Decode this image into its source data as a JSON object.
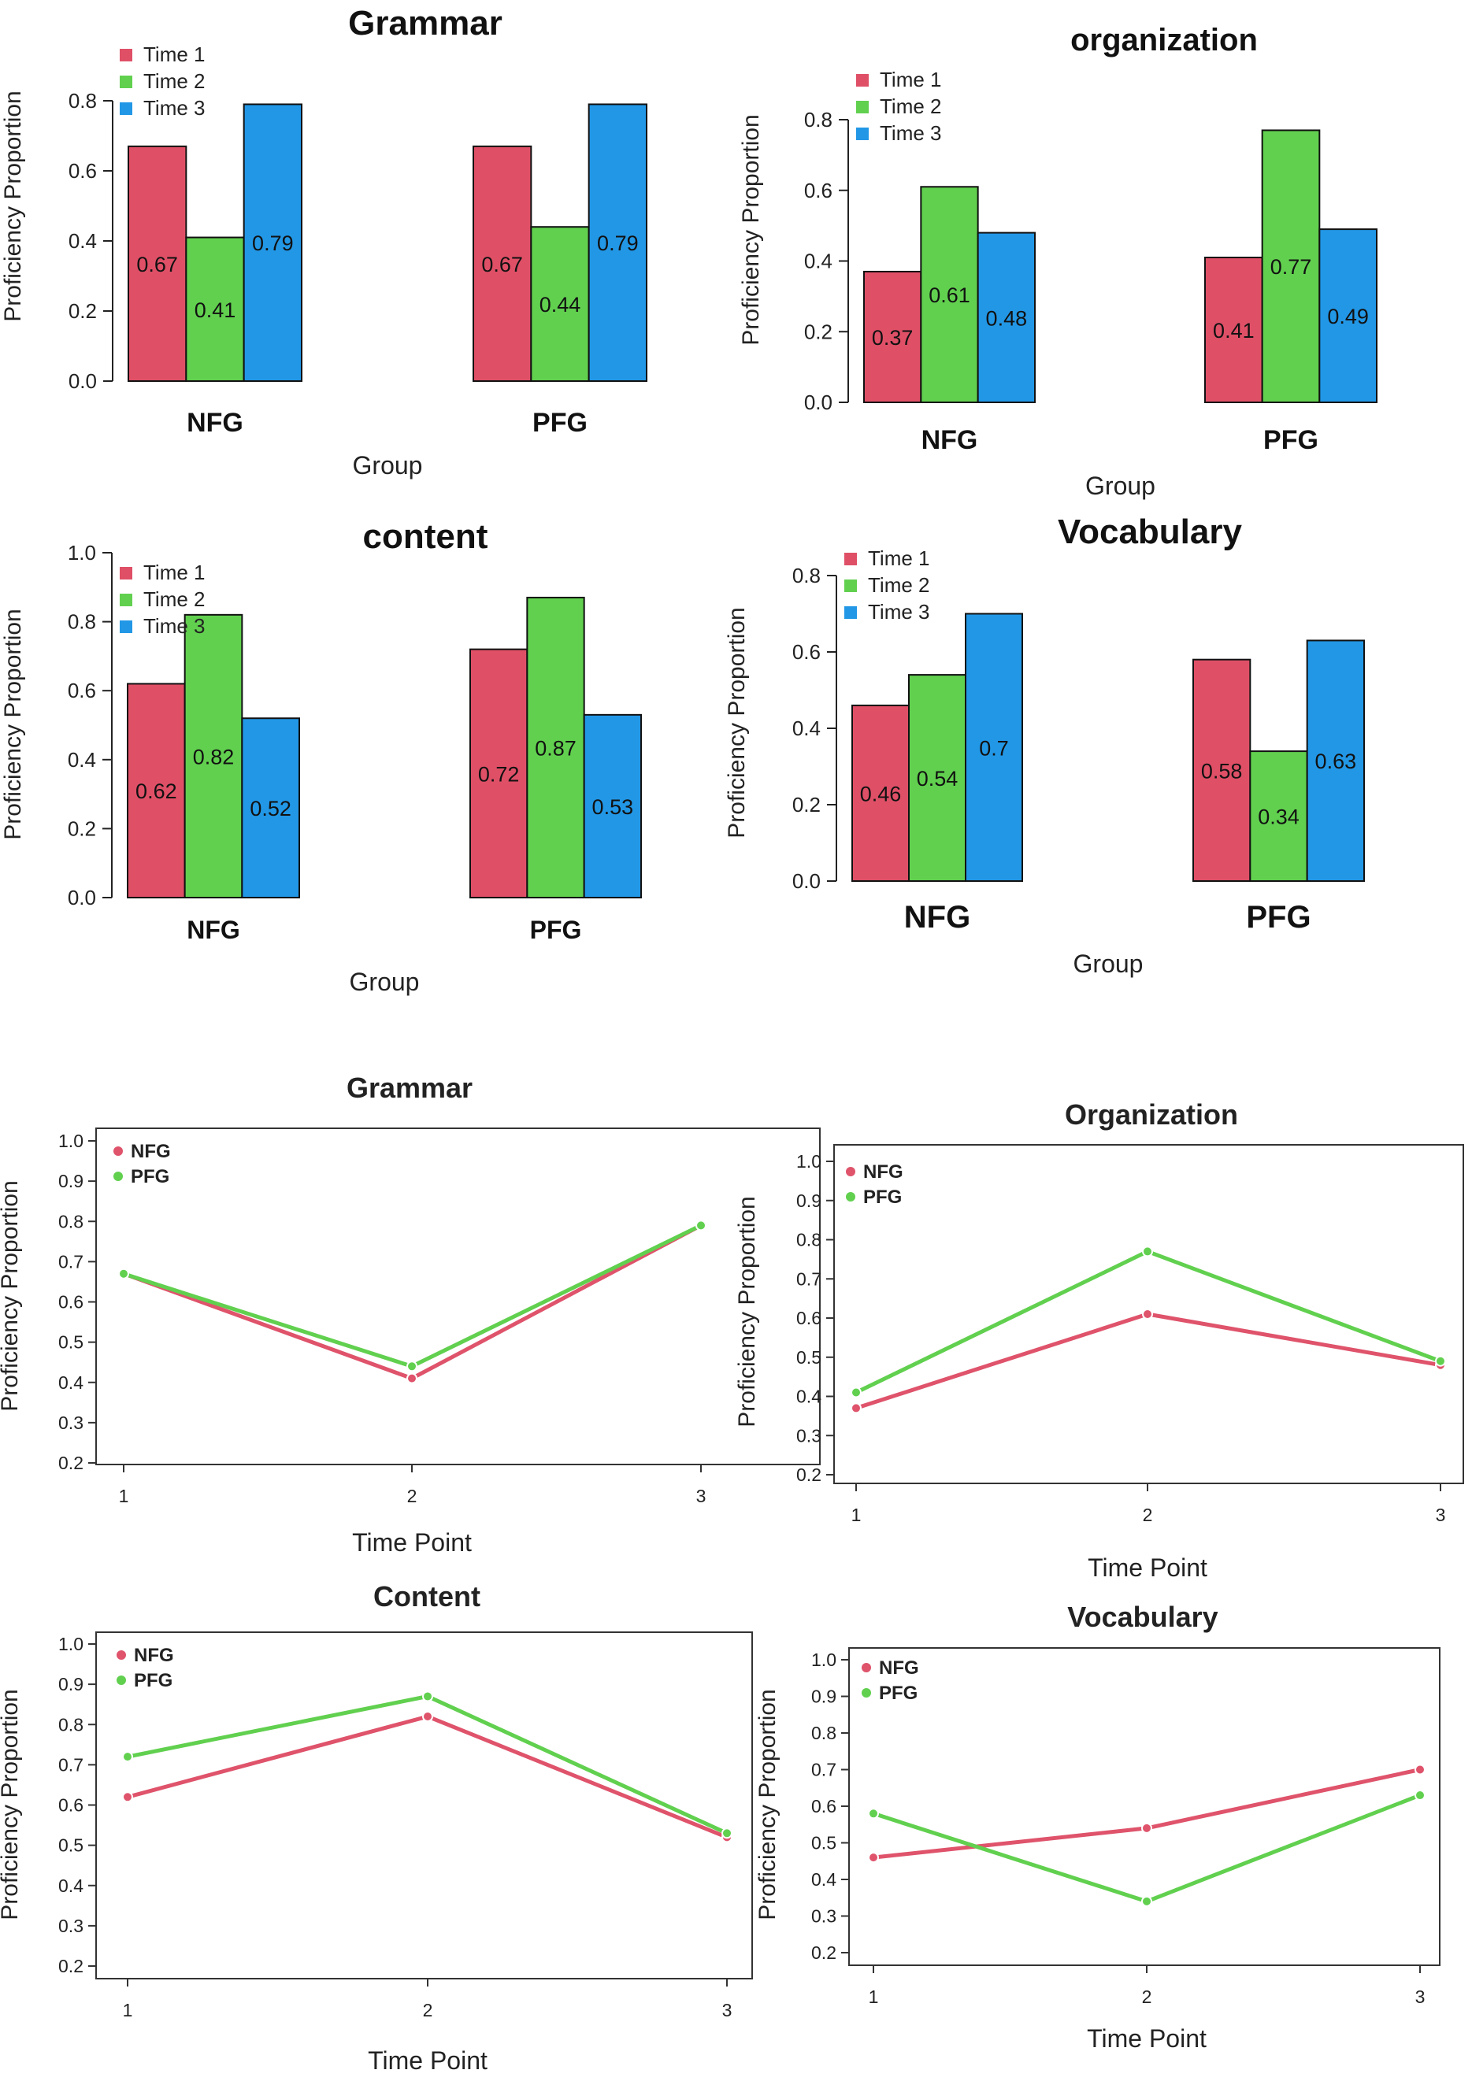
{
  "chart_data": [
    {
      "type": "bar",
      "title": "Grammar",
      "xlabel": "Group",
      "ylabel": "Proficiency Proportion",
      "categories": [
        "NFG",
        "PFG"
      ],
      "series": [
        {
          "name": "Time 1",
          "values": [
            0.67,
            0.67
          ]
        },
        {
          "name": "Time 2",
          "values": [
            0.41,
            0.44
          ]
        },
        {
          "name": "Time 3",
          "values": [
            0.79,
            0.79
          ]
        }
      ],
      "data_labels": [
        [
          "0.67",
          "0.67"
        ],
        [
          "0.41",
          "0.44"
        ],
        [
          "0.79",
          "0.79"
        ]
      ],
      "ylim": [
        0,
        0.8
      ],
      "yticks": [
        0.0,
        0.2,
        0.4,
        0.6,
        0.8
      ],
      "ytick_labels": [
        "0.0",
        "0.2",
        "0.4",
        "0.6",
        "0.8"
      ],
      "legend": "top-left"
    },
    {
      "type": "bar",
      "title": "organization",
      "xlabel": "Group",
      "ylabel": "Proficiency Proportion",
      "categories": [
        "NFG",
        "PFG"
      ],
      "series": [
        {
          "name": "Time 1",
          "values": [
            0.37,
            0.41
          ]
        },
        {
          "name": "Time 2",
          "values": [
            0.61,
            0.77
          ]
        },
        {
          "name": "Time 3",
          "values": [
            0.48,
            0.49
          ]
        }
      ],
      "data_labels": [
        [
          "0.37",
          "0.41"
        ],
        [
          "0.61",
          "0.77"
        ],
        [
          "0.48",
          "0.49"
        ]
      ],
      "ylim": [
        0,
        0.8
      ],
      "yticks": [
        0.0,
        0.2,
        0.4,
        0.6,
        0.8
      ],
      "ytick_labels": [
        "0.0",
        "0.2",
        "0.4",
        "0.6",
        "0.8"
      ],
      "legend": "top-left"
    },
    {
      "type": "bar",
      "title": "content",
      "xlabel": "Group",
      "ylabel": "Proficiency Proportion",
      "categories": [
        "NFG",
        "PFG"
      ],
      "series": [
        {
          "name": "Time 1",
          "values": [
            0.62,
            0.72
          ]
        },
        {
          "name": "Time 2",
          "values": [
            0.82,
            0.87
          ]
        },
        {
          "name": "Time 3",
          "values": [
            0.52,
            0.53
          ]
        }
      ],
      "data_labels": [
        [
          "0.62",
          "0.72"
        ],
        [
          "0.82",
          "0.87"
        ],
        [
          "0.52",
          "0.53"
        ]
      ],
      "ylim": [
        0,
        1.0
      ],
      "yticks": [
        0.0,
        0.2,
        0.4,
        0.6,
        0.8,
        1.0
      ],
      "ytick_labels": [
        "0.0",
        "0.2",
        "0.4",
        "0.6",
        "0.8",
        "1.0"
      ],
      "legend": "top-left"
    },
    {
      "type": "bar",
      "title": "Vocabulary",
      "xlabel": "Group",
      "ylabel": "Proficiency Proportion",
      "categories": [
        "NFG",
        "PFG"
      ],
      "series": [
        {
          "name": "Time 1",
          "values": [
            0.46,
            0.58
          ]
        },
        {
          "name": "Time 2",
          "values": [
            0.54,
            0.34
          ]
        },
        {
          "name": "Time 3",
          "values": [
            0.7,
            0.63
          ]
        }
      ],
      "data_labels": [
        [
          "0.46",
          "0.58"
        ],
        [
          "0.54",
          "0.34"
        ],
        [
          "0.7",
          "0.63"
        ]
      ],
      "ylim": [
        0,
        0.8
      ],
      "yticks": [
        0.0,
        0.2,
        0.4,
        0.6,
        0.8
      ],
      "ytick_labels": [
        "0.0",
        "0.2",
        "0.4",
        "0.6",
        "0.8"
      ],
      "legend": "top-left"
    },
    {
      "type": "line",
      "title": "Grammar",
      "xlabel": "Time Point",
      "ylabel": "Proficiency Proportion",
      "x": [
        1,
        2,
        3
      ],
      "xtick_labels": [
        "1",
        "2",
        "3"
      ],
      "series": [
        {
          "name": "NFG",
          "values": [
            0.67,
            0.41,
            0.79
          ]
        },
        {
          "name": "PFG",
          "values": [
            0.67,
            0.44,
            0.79
          ]
        }
      ],
      "ylim": [
        0.2,
        1.0
      ],
      "yticks": [
        0.2,
        0.3,
        0.4,
        0.5,
        0.6,
        0.7,
        0.8,
        0.9,
        1.0
      ],
      "ytick_labels": [
        "0.2",
        "0.3",
        "0.4",
        "0.5",
        "0.6",
        "0.7",
        "0.8",
        "0.9",
        "1.0"
      ],
      "legend": "top-left"
    },
    {
      "type": "line",
      "title": "Organization",
      "xlabel": "Time Point",
      "ylabel": "Proficiency Proportion",
      "x": [
        1,
        2,
        3
      ],
      "xtick_labels": [
        "1",
        "2",
        "3"
      ],
      "series": [
        {
          "name": "NFG",
          "values": [
            0.37,
            0.61,
            0.48
          ]
        },
        {
          "name": "PFG",
          "values": [
            0.41,
            0.77,
            0.49
          ]
        }
      ],
      "ylim": [
        0.2,
        1.0
      ],
      "yticks": [
        0.2,
        0.3,
        0.4,
        0.5,
        0.6,
        0.7,
        0.8,
        0.9,
        1.0
      ],
      "ytick_labels": [
        "0.2",
        "0.3",
        "0.4",
        "0.5",
        "0.6",
        "0.7",
        "0.8",
        "0.9",
        "1.0"
      ],
      "legend": "top-left"
    },
    {
      "type": "line",
      "title": "Content",
      "xlabel": "Time Point",
      "ylabel": "Proficiency Proportion",
      "x": [
        1,
        2,
        3
      ],
      "xtick_labels": [
        "1",
        "2",
        "3"
      ],
      "series": [
        {
          "name": "NFG",
          "values": [
            0.62,
            0.82,
            0.52
          ]
        },
        {
          "name": "PFG",
          "values": [
            0.72,
            0.87,
            0.53
          ]
        }
      ],
      "ylim": [
        0.2,
        1.0
      ],
      "yticks": [
        0.2,
        0.3,
        0.4,
        0.5,
        0.6,
        0.7,
        0.8,
        0.9,
        1.0
      ],
      "ytick_labels": [
        "0.2",
        "0.3",
        "0.4",
        "0.5",
        "0.6",
        "0.7",
        "0.8",
        "0.9",
        "1.0"
      ],
      "legend": "top-left"
    },
    {
      "type": "line",
      "title": "Vocabulary",
      "xlabel": "Time Point",
      "ylabel": "Proficiency Proportion",
      "x": [
        1,
        2,
        3
      ],
      "xtick_labels": [
        "1",
        "2",
        "3"
      ],
      "series": [
        {
          "name": "NFG",
          "values": [
            0.46,
            0.54,
            0.7
          ]
        },
        {
          "name": "PFG",
          "values": [
            0.58,
            0.34,
            0.63
          ]
        }
      ],
      "ylim": [
        0.2,
        1.0
      ],
      "yticks": [
        0.2,
        0.3,
        0.4,
        0.5,
        0.6,
        0.7,
        0.8,
        0.9,
        1.0
      ],
      "ytick_labels": [
        "0.2",
        "0.3",
        "0.4",
        "0.5",
        "0.6",
        "0.7",
        "0.8",
        "0.9",
        "1.0"
      ],
      "legend": "top-left"
    }
  ],
  "colors": {
    "time1": "#DF5067",
    "time2": "#61D04F",
    "time3": "#2297E6",
    "nfg": "#DF536B",
    "pfg": "#61D04F",
    "axis": "#000000"
  }
}
